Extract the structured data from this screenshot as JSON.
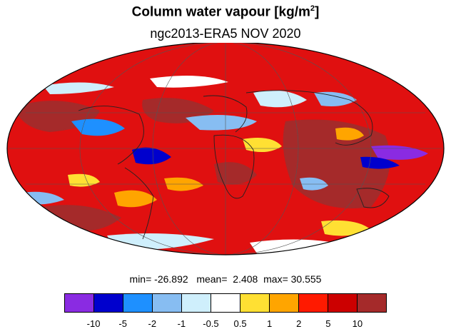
{
  "title": "Column water vapour [kg/m",
  "title_sup": "2",
  "title_end": "]",
  "subtitle": "ngc2013-ERA5  NOV 2020",
  "stats": {
    "min_label": "min=",
    "min": "-26.892",
    "mean_label": "mean=",
    "mean": "2.408",
    "max_label": "max=",
    "max": "30.555"
  },
  "colorbar": {
    "colors": [
      "#8a2be2",
      "#0000cd",
      "#1e90ff",
      "#87bdf2",
      "#cfeffc",
      "#ffffff",
      "#ffe033",
      "#ffa500",
      "#ff1a00",
      "#cc0000",
      "#a52a2a"
    ],
    "labels": [
      "-10",
      "-5",
      "-2",
      "-1",
      "-0.5",
      "0.5",
      "1",
      "2",
      "5",
      "10"
    ]
  }
}
